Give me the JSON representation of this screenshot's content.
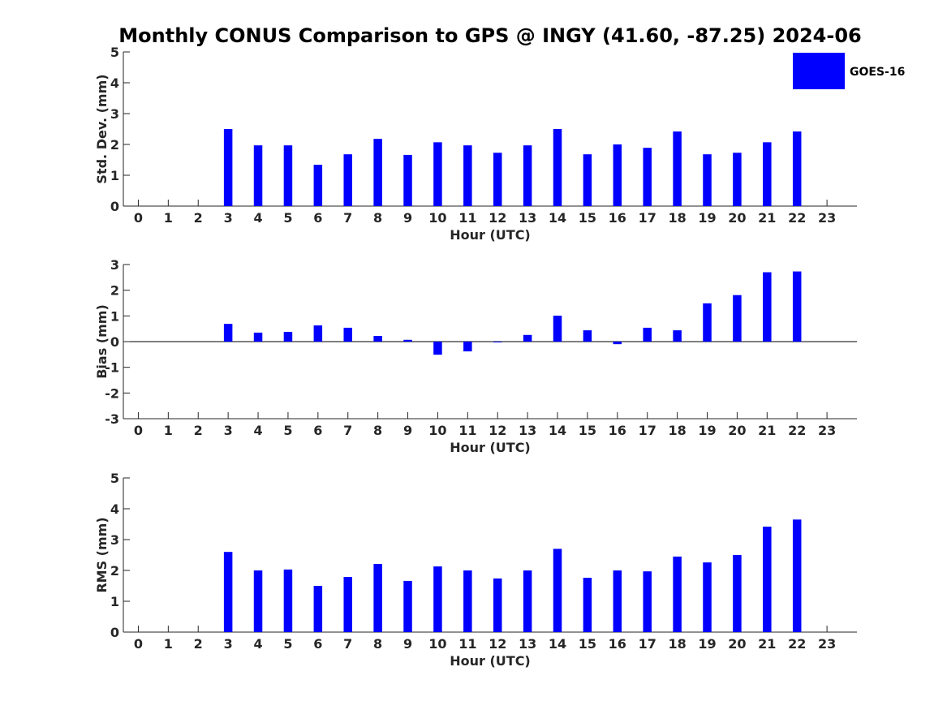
{
  "figure": {
    "title": "Monthly CONUS Comparison to GPS @ INGY (41.60, -87.25) 2024-06"
  },
  "legend": {
    "label": "GOES-16",
    "color": "#0000FF",
    "placement": "top-right"
  },
  "chart_data": [
    {
      "type": "bar",
      "name": "std-dev",
      "xlabel": "Hour (UTC)",
      "ylabel": "Std. Dev. (mm)",
      "ylim": [
        0,
        5
      ],
      "yticks": [
        0,
        1,
        2,
        3,
        4,
        5
      ],
      "categories": [
        "0",
        "1",
        "2",
        "3",
        "4",
        "5",
        "6",
        "7",
        "8",
        "9",
        "10",
        "11",
        "12",
        "13",
        "14",
        "15",
        "16",
        "17",
        "18",
        "19",
        "20",
        "21",
        "22",
        "23"
      ],
      "series": [
        {
          "name": "GOES-16",
          "color": "#0000FF",
          "values": [
            null,
            null,
            null,
            2.5,
            1.97,
            1.97,
            1.34,
            1.68,
            2.18,
            1.66,
            2.07,
            1.97,
            1.73,
            1.97,
            2.5,
            1.68,
            2.0,
            1.89,
            2.42,
            1.68,
            1.73,
            2.07,
            2.42,
            null
          ]
        }
      ]
    },
    {
      "type": "bar",
      "name": "bias",
      "xlabel": "Hour (UTC)",
      "ylabel": "Bias (mm)",
      "ylim": [
        -3,
        3
      ],
      "yticks": [
        -3,
        -2,
        -1,
        0,
        1,
        2,
        3
      ],
      "categories": [
        "0",
        "1",
        "2",
        "3",
        "4",
        "5",
        "6",
        "7",
        "8",
        "9",
        "10",
        "11",
        "12",
        "13",
        "14",
        "15",
        "16",
        "17",
        "18",
        "19",
        "20",
        "21",
        "22",
        "23"
      ],
      "series": [
        {
          "name": "GOES-16",
          "color": "#0000FF",
          "values": [
            null,
            null,
            null,
            0.69,
            0.35,
            0.38,
            0.63,
            0.54,
            0.22,
            0.07,
            -0.51,
            -0.38,
            -0.03,
            0.26,
            1.01,
            0.44,
            -0.1,
            0.54,
            0.44,
            1.49,
            1.81,
            2.7,
            2.73,
            null
          ]
        }
      ]
    },
    {
      "type": "bar",
      "name": "rms",
      "xlabel": "Hour (UTC)",
      "ylabel": "RMS (mm)",
      "ylim": [
        0,
        5
      ],
      "yticks": [
        0,
        1,
        2,
        3,
        4,
        5
      ],
      "categories": [
        "0",
        "1",
        "2",
        "3",
        "4",
        "5",
        "6",
        "7",
        "8",
        "9",
        "10",
        "11",
        "12",
        "13",
        "14",
        "15",
        "16",
        "17",
        "18",
        "19",
        "20",
        "21",
        "22",
        "23"
      ],
      "series": [
        {
          "name": "GOES-16",
          "color": "#0000FF",
          "values": [
            null,
            null,
            null,
            2.6,
            2.0,
            2.03,
            1.5,
            1.79,
            2.21,
            1.66,
            2.13,
            2.0,
            1.74,
            2.0,
            2.7,
            1.76,
            2.0,
            1.97,
            2.45,
            2.26,
            2.5,
            3.42,
            3.65,
            null
          ]
        }
      ]
    }
  ]
}
